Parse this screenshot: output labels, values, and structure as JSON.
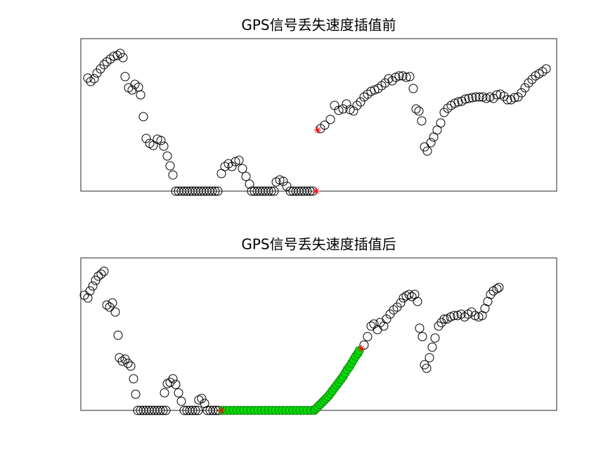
{
  "chart_data": [
    {
      "type": "scatter",
      "title": "GPS信号丢失速度插值前",
      "xlim": [
        0,
        677
      ],
      "ylim": [
        0,
        217
      ],
      "series": [
        {
          "color": "#000000",
          "marker": "o",
          "filled": false,
          "x": [
            10,
            14,
            19,
            23,
            28,
            33,
            37,
            42,
            47,
            52,
            56,
            60,
            63,
            68,
            73,
            77,
            82,
            85,
            89,
            93,
            98,
            103,
            109,
            114,
            118,
            123,
            127,
            131,
            135,
            139,
            143,
            147,
            151,
            155,
            159,
            163,
            167,
            171,
            175,
            179,
            183,
            187,
            191,
            195,
            200,
            205,
            210,
            215,
            220,
            225,
            230,
            235,
            240,
            243,
            247,
            251,
            255,
            259,
            263,
            267,
            271,
            275,
            278,
            283,
            288,
            293,
            298,
            302,
            306,
            310,
            314,
            318,
            322,
            326,
            330,
            341,
            347,
            355,
            361,
            367,
            373,
            378,
            383,
            388,
            393,
            398,
            403,
            408,
            413,
            418,
            423,
            428,
            433,
            438,
            443,
            448,
            453,
            458,
            463,
            468,
            473,
            477,
            481,
            485,
            489,
            493,
            498,
            502,
            507,
            512,
            517,
            522,
            527,
            532,
            537,
            542,
            547,
            552,
            557,
            562,
            567,
            572,
            577,
            582,
            587,
            592,
            597,
            602,
            607,
            612,
            617,
            622,
            627,
            632,
            637,
            642,
            647,
            652,
            657,
            662
          ],
          "values": [
            161,
            156,
            160,
            168,
            174,
            180,
            184,
            188,
            192,
            193,
            196,
            190,
            163,
            147,
            144,
            152,
            148,
            137,
            106,
            75,
            68,
            65,
            74,
            72,
            64,
            50,
            36,
            23,
            0,
            0,
            0,
            0,
            0,
            0,
            0,
            0,
            0,
            0,
            0,
            0,
            0,
            0,
            0,
            0,
            25,
            35,
            39,
            35,
            42,
            44,
            32,
            21,
            10,
            0,
            0,
            0,
            0,
            0,
            0,
            0,
            0,
            0,
            13,
            16,
            14,
            7,
            0,
            0,
            0,
            0,
            0,
            0,
            0,
            0,
            0,
            89,
            94,
            102,
            122,
            115,
            117,
            124,
            116,
            114,
            122,
            127,
            134,
            138,
            142,
            144,
            146,
            150,
            154,
            160,
            157,
            162,
            164,
            164,
            162,
            163,
            146,
            117,
            114,
            100,
            63,
            57,
            69,
            77,
            87,
            97,
            112,
            118,
            122,
            125,
            127,
            128,
            131,
            132,
            133,
            134,
            134,
            134,
            132,
            134,
            132,
            137,
            138,
            135,
            130,
            130,
            133,
            134,
            140,
            147,
            154,
            159,
            164,
            167,
            170,
            174
          ]
        },
        {
          "color": "#ff0000",
          "marker": "*",
          "x": [
            335,
            337
          ],
          "values": [
            0,
            87
          ]
        }
      ]
    },
    {
      "type": "scatter",
      "title": "GPS信号丢失速度插值后",
      "xlim": [
        0,
        677
      ],
      "ylim": [
        0,
        217
      ],
      "series": [
        {
          "color": "#000000",
          "marker": "o",
          "filled": false,
          "x": [
            5,
            10,
            13,
            17,
            21,
            25,
            29,
            33,
            37,
            41,
            45,
            49,
            53,
            55,
            59,
            63,
            67,
            71,
            75,
            78,
            81,
            85,
            89,
            93,
            97,
            101,
            105,
            109,
            113,
            117,
            121,
            119,
            123,
            127,
            131,
            135,
            139,
            143,
            147,
            151,
            155,
            159,
            163,
            167,
            168,
            172,
            176,
            180,
            184,
            188,
            192,
            196,
            403,
            408,
            413,
            417,
            422,
            426,
            431,
            435,
            440,
            445,
            450,
            455,
            459,
            463,
            467,
            471,
            475,
            479,
            482,
            486,
            489,
            492,
            496,
            500,
            504,
            509,
            513,
            517,
            521,
            526,
            531,
            536,
            541,
            546,
            551,
            556,
            561,
            566,
            571,
            575,
            579,
            583,
            587,
            592,
            595
          ],
          "values": [
            164,
            160,
            170,
            177,
            185,
            191,
            194,
            198,
            150,
            147,
            153,
            140,
            107,
            75,
            70,
            73,
            67,
            63,
            45,
            23,
            0,
            0,
            0,
            0,
            0,
            0,
            0,
            0,
            0,
            0,
            0,
            25,
            38,
            40,
            45,
            37,
            25,
            13,
            0,
            0,
            0,
            0,
            0,
            0,
            15,
            17,
            10,
            0,
            0,
            0,
            0,
            0,
            93,
            105,
            120,
            123,
            115,
            125,
            120,
            130,
            137,
            143,
            147,
            153,
            160,
            163,
            165,
            162,
            165,
            155,
            117,
            105,
            65,
            60,
            75,
            90,
            103,
            120,
            125,
            130,
            130,
            133,
            135,
            135,
            137,
            133,
            137,
            140,
            135,
            133,
            135,
            145,
            155,
            165,
            170,
            173,
            175
          ]
        },
        {
          "color": "#00dd00",
          "marker": "o",
          "filled": true,
          "x": [
            202,
            207,
            212,
            217,
            222,
            227,
            232,
            237,
            242,
            247,
            252,
            257,
            262,
            267,
            272,
            277,
            282,
            287,
            292,
            297,
            302,
            307,
            312,
            317,
            322,
            327,
            332,
            334,
            337,
            340,
            343,
            346,
            349,
            352,
            355,
            358,
            361,
            364,
            367,
            370,
            373,
            376,
            379,
            382,
            385,
            388,
            391,
            394,
            396
          ],
          "values": [
            0,
            0,
            0,
            0,
            0,
            0,
            0,
            0,
            0,
            0,
            0,
            0,
            0,
            0,
            0,
            0,
            0,
            0,
            0,
            0,
            0,
            0,
            0,
            0,
            0,
            0,
            0,
            2,
            5,
            8,
            11,
            14,
            17,
            20,
            24,
            28,
            32,
            36,
            40,
            44,
            48,
            53,
            58,
            62,
            67,
            72,
            77,
            81,
            85
          ]
        },
        {
          "color": "#ff0000",
          "marker": "*",
          "x": [
            200,
            399
          ],
          "values": [
            0,
            88
          ]
        }
      ]
    }
  ]
}
